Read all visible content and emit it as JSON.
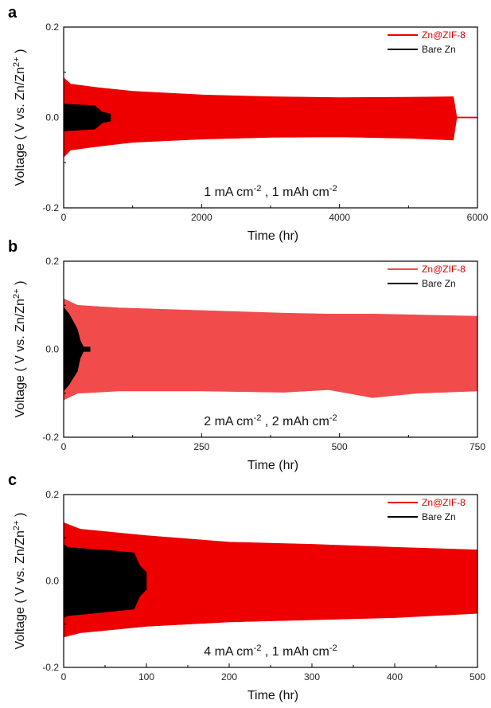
{
  "chart_data": [
    {
      "type": "line",
      "panel_label": "a",
      "xlabel": "Time (hr)",
      "ylabel": "Voltage ( V vs. Zn/Zn2+ )",
      "xlim": [
        0,
        6000
      ],
      "ylim": [
        -0.2,
        0.2
      ],
      "xticks": [
        "0",
        "2000",
        "4000",
        "6000"
      ],
      "yticks": [
        "0.2",
        "0.0",
        "-0.2"
      ],
      "annotation": "1 mA cm-2 , 1 mAh cm-2",
      "legend_position": "top-right",
      "series": [
        {
          "name": "Zn@ZIF-8",
          "color": "#ee0000",
          "x": [
            0,
            100,
            500,
            1000,
            2000,
            3000,
            4000,
            5000,
            5650,
            5700,
            6000
          ],
          "upper": [
            0.088,
            0.074,
            0.066,
            0.058,
            0.05,
            0.046,
            0.044,
            0.045,
            0.046,
            0.001,
            0.001
          ],
          "lower": [
            -0.088,
            -0.072,
            -0.064,
            -0.055,
            -0.048,
            -0.044,
            -0.043,
            -0.046,
            -0.05,
            -0.001,
            -0.001
          ]
        },
        {
          "name": "Bare Zn",
          "color": "#000000",
          "x": [
            0,
            200,
            450,
            500,
            560,
            680
          ],
          "upper": [
            0.03,
            0.028,
            0.026,
            0.02,
            0.012,
            0.008
          ],
          "lower": [
            -0.03,
            -0.028,
            -0.026,
            -0.02,
            -0.012,
            -0.008
          ]
        }
      ]
    },
    {
      "type": "line",
      "panel_label": "b",
      "xlabel": "Time (hr)",
      "ylabel": "Voltage ( V vs. Zn/Zn2+ )",
      "xlim": [
        0,
        750
      ],
      "ylim": [
        -0.2,
        0.2
      ],
      "xticks": [
        "0",
        "250",
        "500",
        "750"
      ],
      "yticks": [
        "0.2",
        "0.0",
        "-0.2"
      ],
      "annotation": "2 mA cm-2 , 2 mAh cm-2",
      "legend_position": "top-right",
      "series": [
        {
          "name": "Zn@ZIF-8",
          "color": "#f24b4b",
          "x": [
            0,
            25,
            100,
            250,
            400,
            480,
            560,
            640,
            750
          ],
          "upper": [
            0.115,
            0.1,
            0.094,
            0.088,
            0.082,
            0.08,
            0.08,
            0.078,
            0.075
          ],
          "lower": [
            -0.115,
            -0.1,
            -0.095,
            -0.095,
            -0.098,
            -0.092,
            -0.11,
            -0.1,
            -0.095
          ]
        },
        {
          "name": "Bare Zn",
          "color": "#000000",
          "x": [
            0,
            10,
            25,
            30,
            36,
            48
          ],
          "upper": [
            0.095,
            0.08,
            0.045,
            0.02,
            0.005,
            0.005
          ],
          "lower": [
            -0.095,
            -0.08,
            -0.05,
            -0.02,
            -0.005,
            -0.005
          ]
        }
      ]
    },
    {
      "type": "line",
      "panel_label": "c",
      "xlabel": "Time (hr)",
      "ylabel": "Voltage ( V vs. Zn/Zn2+ )",
      "xlim": [
        0,
        500
      ],
      "ylim": [
        -0.2,
        0.2
      ],
      "xticks": [
        "0",
        "100",
        "200",
        "300",
        "400",
        "500"
      ],
      "yticks": [
        "0.2",
        "0.0",
        "-0.2"
      ],
      "annotation": "4 mA cm-2 , 1 mAh cm-2",
      "legend_position": "top-right",
      "series": [
        {
          "name": "Zn@ZIF-8",
          "color": "#ee0000",
          "x": [
            0,
            20,
            100,
            200,
            300,
            400,
            500
          ],
          "upper": [
            0.135,
            0.12,
            0.105,
            0.09,
            0.085,
            0.078,
            0.072
          ],
          "lower": [
            -0.13,
            -0.12,
            -0.105,
            -0.095,
            -0.09,
            -0.085,
            -0.075
          ]
        },
        {
          "name": "Bare Zn",
          "color": "#000000",
          "x": [
            0,
            5,
            30,
            60,
            85,
            92,
            100
          ],
          "upper": [
            0.085,
            0.078,
            0.074,
            0.07,
            0.065,
            0.035,
            0.02
          ],
          "lower": [
            -0.085,
            -0.08,
            -0.076,
            -0.07,
            -0.065,
            -0.035,
            -0.02
          ]
        }
      ]
    }
  ]
}
